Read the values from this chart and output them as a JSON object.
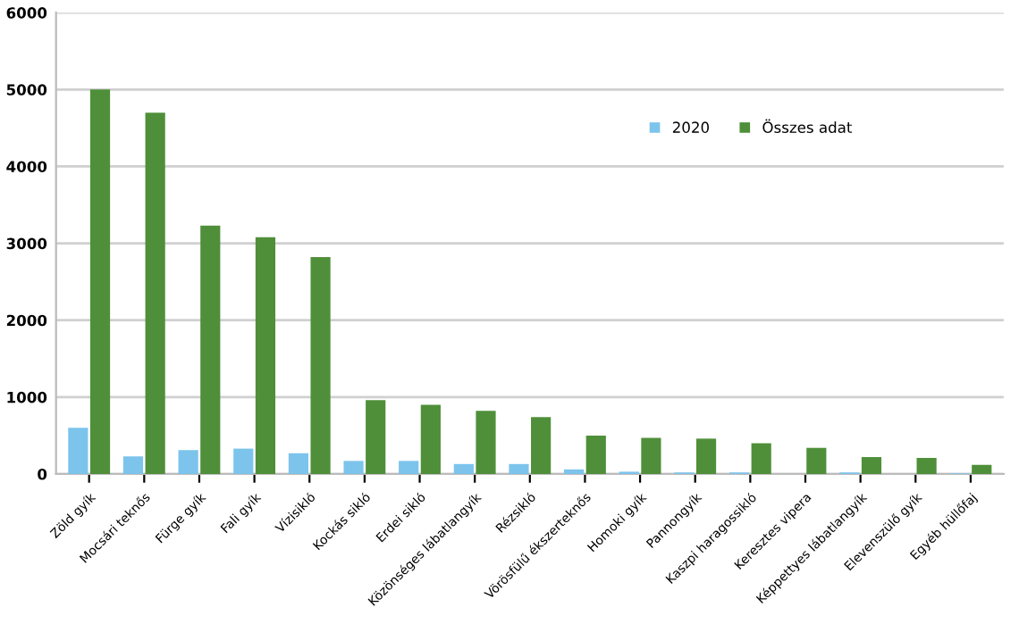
{
  "chart_data": {
    "type": "bar",
    "categories": [
      "Zöld gyík",
      "Mocsári teknős",
      "Fürge gyík",
      "Fali gyík",
      "Vízisikló",
      "Kockás sikló",
      "Erdei sikló",
      "Közönséges lábatlangyík",
      "Rézsikló",
      "Vörösfülű ékszerteknős",
      "Homoki gyík",
      "Pannongyík",
      "Kaszpi haragossikló",
      "Keresztes vipera",
      "Képpettyes lábatlangyík",
      "Elevenszülő gyík",
      "Egyéb hüllőfaj"
    ],
    "series": [
      {
        "name": "2020",
        "color": "#7cc4ec",
        "values": [
          600,
          230,
          310,
          330,
          270,
          170,
          170,
          130,
          130,
          60,
          30,
          20,
          20,
          0,
          20,
          0,
          10
        ]
      },
      {
        "name": "Összes adat",
        "color": "#4f8f3a",
        "values": [
          5000,
          4700,
          3230,
          3080,
          2820,
          960,
          900,
          820,
          740,
          500,
          470,
          460,
          400,
          340,
          220,
          210,
          120
        ]
      }
    ],
    "ylim": [
      0,
      6000
    ],
    "yticks": [
      0,
      1000,
      2000,
      3000,
      4000,
      5000,
      6000
    ],
    "grid": "y",
    "legend": "top right"
  }
}
